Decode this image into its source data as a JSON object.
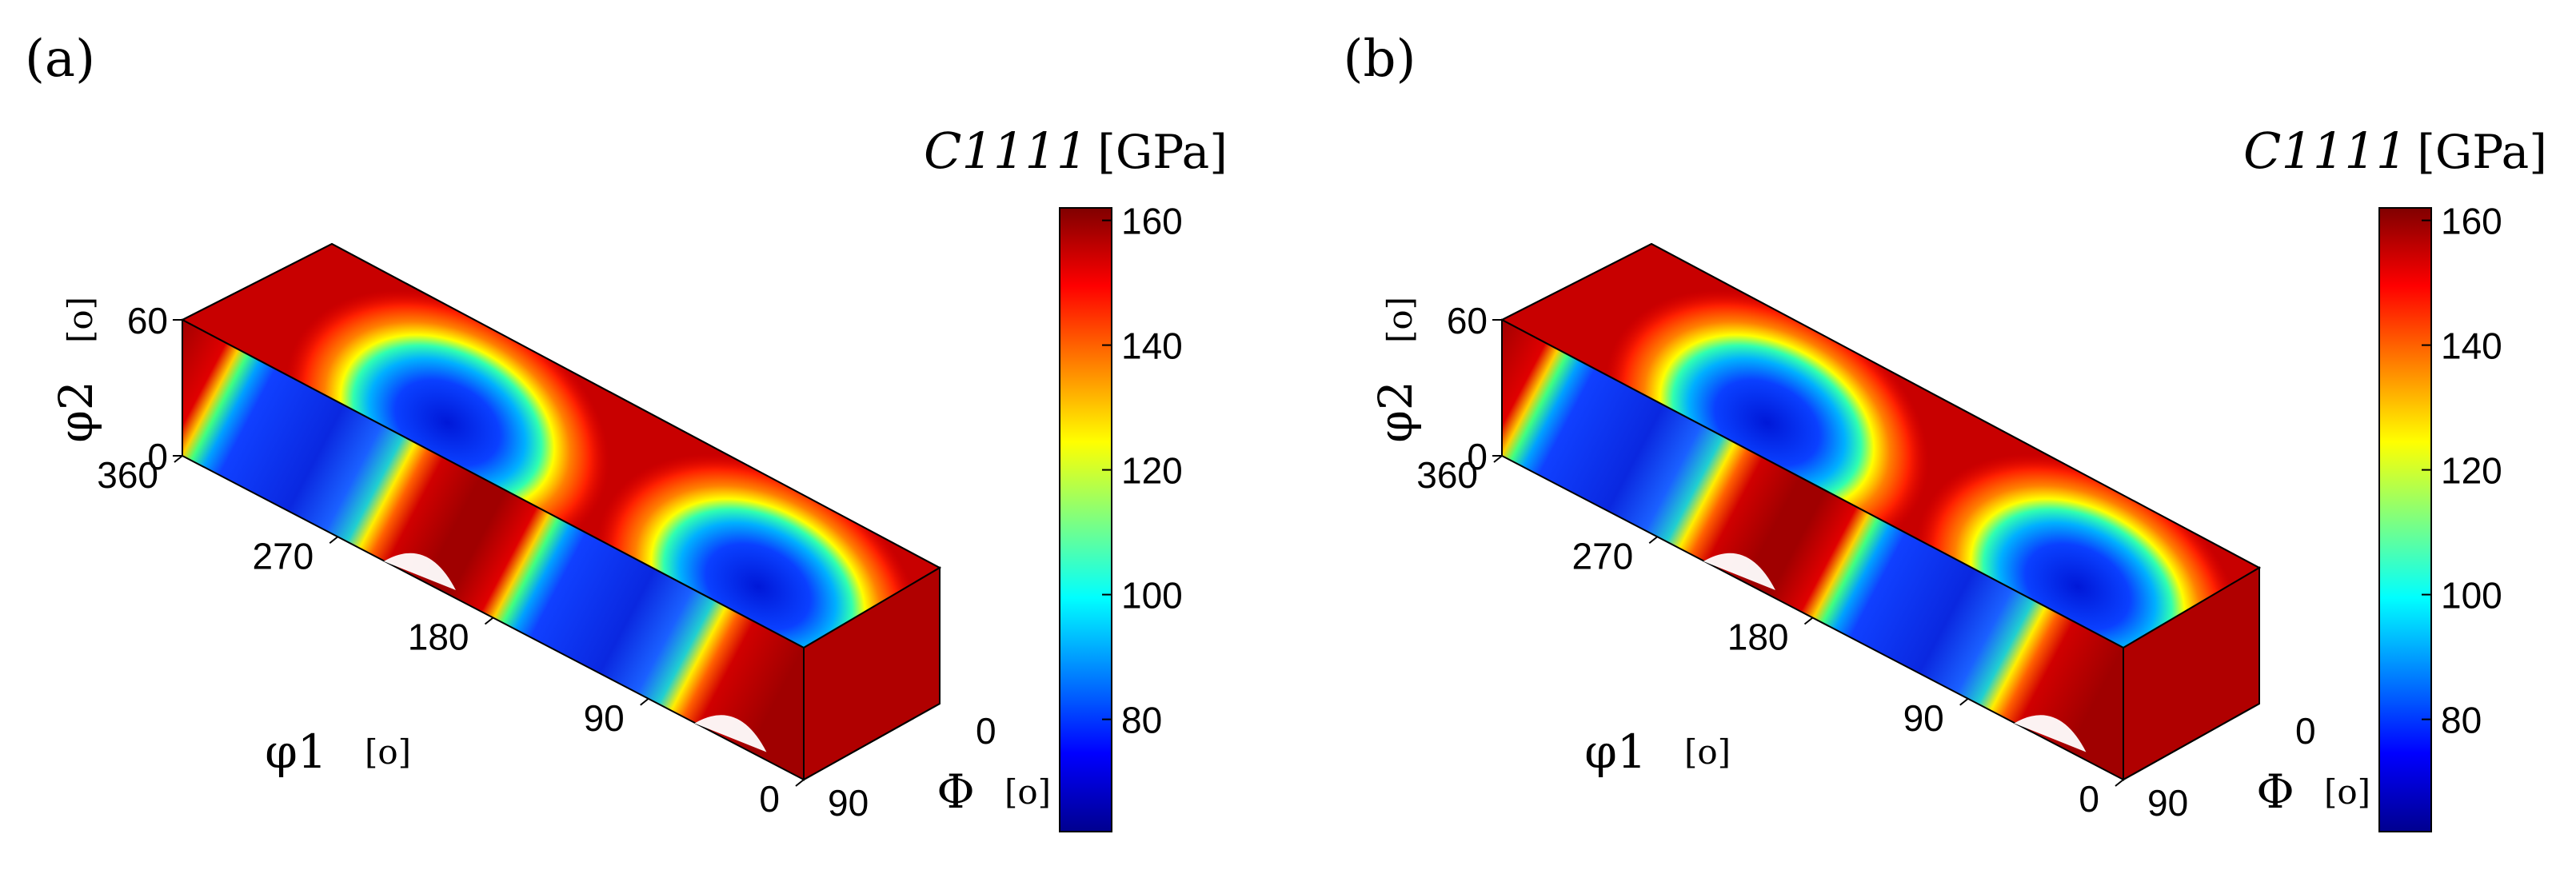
{
  "chart_data": [
    {
      "type": "heatmap",
      "panel_label": "(a)",
      "axes": {
        "phi1": {
          "label": "φ1",
          "unit": "[o]",
          "ticks": [
            "0",
            "90",
            "180",
            "270",
            "360"
          ],
          "range": [
            0,
            360
          ]
        },
        "Phi": {
          "label": "Φ",
          "unit": "[o]",
          "ticks": [
            "90",
            "0"
          ],
          "range": [
            0,
            90
          ]
        },
        "phi2": {
          "label": "φ2",
          "unit": "[o]",
          "ticks": [
            "0",
            "60"
          ],
          "range": [
            0,
            60
          ]
        }
      },
      "colorbar": {
        "label": "C1111",
        "unit": "[GPa]",
        "ticks": [
          "80",
          "100",
          "120",
          "140",
          "160"
        ],
        "range": [
          62,
          162
        ]
      },
      "field": {
        "top_face_lobe_centers_phi1": [
          45,
          225
        ],
        "front_face_minimum_bands_phi1": [
          45,
          225
        ],
        "min_value": 62,
        "max_value": 162
      }
    },
    {
      "type": "heatmap",
      "panel_label": "(b)",
      "axes": {
        "phi1": {
          "label": "φ1",
          "unit": "[o]",
          "ticks": [
            "0",
            "90",
            "180",
            "270",
            "360"
          ],
          "range": [
            0,
            360
          ]
        },
        "Phi": {
          "label": "Φ",
          "unit": "[o]",
          "ticks": [
            "90",
            "0"
          ],
          "range": [
            0,
            90
          ]
        },
        "phi2": {
          "label": "φ2",
          "unit": "[o]",
          "ticks": [
            "0",
            "60"
          ],
          "range": [
            0,
            60
          ]
        }
      },
      "colorbar": {
        "label": "C1111",
        "unit": "[GPa]",
        "ticks": [
          "80",
          "100",
          "120",
          "140",
          "160"
        ],
        "range": [
          62,
          162
        ]
      },
      "field": {
        "top_face_lobe_centers_phi1": [
          45,
          225
        ],
        "front_face_minimum_bands_phi1": [
          45,
          225
        ],
        "min_value": 62,
        "max_value": 162
      }
    }
  ]
}
